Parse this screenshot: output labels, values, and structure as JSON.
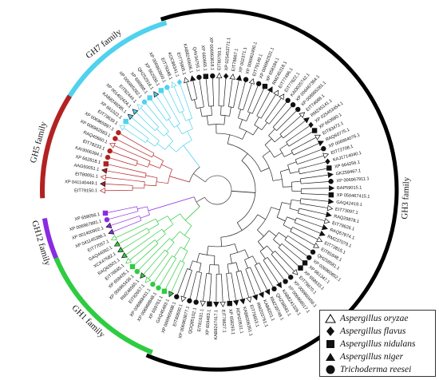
{
  "families": [
    {
      "name": "GH7 family",
      "color": "#4fd2ee",
      "start": 20,
      "end": 57
    },
    {
      "name": "GH5 family",
      "color": "#b22222",
      "start": 60,
      "end": 95
    },
    {
      "name": "GH12 family",
      "color": "#8a2be2",
      "start": 98,
      "end": 112
    },
    {
      "name": "GH1 family",
      "color": "#2ecc40",
      "start": 117,
      "end": 162
    },
    {
      "name": "GH3 family",
      "color": "#000000",
      "start": 167,
      "end": 356
    }
  ],
  "leaves": [
    {
      "label": "EIT79150.1",
      "symbol": "triangle",
      "group": "GH5"
    },
    {
      "label": "XP 041140449.1",
      "symbol": "filled-triangle",
      "group": "GH5"
    },
    {
      "label": "EIT80051.1",
      "symbol": "triangle",
      "group": "GH5"
    },
    {
      "label": "AAG50051.1",
      "symbol": "filled-triangle",
      "group": "GH5"
    },
    {
      "label": "XP 662818.1",
      "symbol": "square",
      "group": "GH5"
    },
    {
      "label": "KAI3006394.1",
      "symbol": "circle",
      "group": "GH5"
    },
    {
      "label": "EIT78233.1",
      "symbol": "circle",
      "group": "GH5"
    },
    {
      "label": "RAQ40660.1",
      "symbol": "triangle",
      "group": "GH5"
    },
    {
      "label": "XP 006962583.1",
      "symbol": "circle",
      "group": "GH5"
    },
    {
      "label": "XP 006965897.1",
      "symbol": "circle",
      "group": "GH5"
    },
    {
      "label": "EIT79639.1",
      "symbol": "triangle",
      "group": "GH7"
    },
    {
      "label": "XP 661022.1",
      "symbol": "square",
      "group": "GH7"
    },
    {
      "label": "KAB8249285.1",
      "symbol": "filled-triangle",
      "group": "GH7"
    },
    {
      "label": "XP 001402424.1",
      "symbol": "filled-triangle",
      "group": "GH7"
    },
    {
      "label": "EIT82444.1",
      "symbol": "triangle",
      "group": "GH7"
    },
    {
      "label": "XP 006965282.1",
      "symbol": "circle",
      "group": "GH7"
    },
    {
      "label": "XP 658998.1",
      "symbol": "square",
      "group": "GH7"
    },
    {
      "label": "QHZ52916.1",
      "symbol": "filled-triangle",
      "group": "GH7"
    },
    {
      "label": "XP 662030.1",
      "symbol": "square",
      "group": "GH7"
    },
    {
      "label": "XP 006963900.1",
      "symbol": "circle",
      "group": "GH7"
    },
    {
      "label": "EIT79348.1",
      "symbol": "triangle",
      "group": "GH7"
    },
    {
      "label": "KOC86341.1",
      "symbol": "diamond",
      "group": "GH7"
    },
    {
      "label": "EIT75905.1",
      "symbol": "triangle",
      "group": "GH3"
    },
    {
      "label": "KAB8245606.1",
      "symbol": "filled-triangle",
      "group": "GH3"
    },
    {
      "label": "QAV34755.1",
      "symbol": "circle",
      "group": "GH3"
    },
    {
      "label": "XP 660665.1",
      "symbol": "square",
      "group": "GH3"
    },
    {
      "label": "XP 006963618.1",
      "symbol": "circle",
      "group": "GH3"
    },
    {
      "label": "EIT80793.1",
      "symbol": "triangle",
      "group": "GH3"
    },
    {
      "label": "XP 025453771.1",
      "symbol": "diamond",
      "group": "GH3"
    },
    {
      "label": "EIT78867.1",
      "symbol": "triangle",
      "group": "GH3"
    },
    {
      "label": "XP 002371.1",
      "symbol": "filled-triangle",
      "group": "GH3"
    },
    {
      "label": "XP 006962490.1",
      "symbol": "circle",
      "group": "GH3"
    },
    {
      "label": "EIT79149.1",
      "symbol": "triangle",
      "group": "GH3"
    },
    {
      "label": "XP 006962531.1",
      "symbol": "circle",
      "group": "GH3"
    },
    {
      "label": "XP 658184.1",
      "symbol": "square",
      "group": "GH3"
    },
    {
      "label": "RMZ45318.1",
      "symbol": "filled-triangle",
      "group": "GH3"
    },
    {
      "label": "EIT77496.1",
      "symbol": "triangle",
      "group": "GH3"
    },
    {
      "label": "EIT77622.1",
      "symbol": "triangle",
      "group": "GH3"
    },
    {
      "label": "KAI3025742.1",
      "symbol": "circle",
      "group": "GH3"
    },
    {
      "label": "XP 006467364.1",
      "symbol": "circle",
      "group": "GH3"
    },
    {
      "label": "XP 006965281.1",
      "symbol": "circle",
      "group": "GH3"
    },
    {
      "label": "EIT74688.1",
      "symbol": "triangle",
      "group": "GH3"
    },
    {
      "label": "RMZ45141.1",
      "symbol": "filled-triangle",
      "group": "GH3"
    },
    {
      "label": "XP 025453454.1",
      "symbol": "diamond",
      "group": "GH3"
    },
    {
      "label": "XP 663580.1",
      "symbol": "square",
      "group": "GH3"
    },
    {
      "label": "EIT83472.1",
      "symbol": "triangle",
      "group": "GH3"
    },
    {
      "label": "RAQ60775.1",
      "symbol": "filled-triangle",
      "group": "GH3"
    },
    {
      "label": "XP 006964076.1",
      "symbol": "circle",
      "group": "GH3"
    },
    {
      "label": "EIT72708.1",
      "symbol": "triangle",
      "group": "GH3"
    },
    {
      "label": "KAJ1714040.1",
      "symbol": "diamond",
      "group": "GH3"
    },
    {
      "label": "XP 664256.1",
      "symbol": "square",
      "group": "GH3"
    },
    {
      "label": "GKZ58467.1",
      "symbol": "filled-triangle",
      "group": "GH3"
    },
    {
      "label": "XP 006967911.1",
      "symbol": "circle",
      "group": "GH3"
    },
    {
      "label": "BAP59015.1",
      "symbol": "filled-triangle",
      "group": "GH3"
    },
    {
      "label": "XP 050467415.1",
      "symbol": "square",
      "group": "GH3"
    },
    {
      "label": "GAQ42419.1",
      "symbol": "filled-triangle",
      "group": "GH3"
    },
    {
      "label": "EIT73097.1",
      "symbol": "triangle",
      "group": "GH3"
    },
    {
      "label": "RAQ29878.1",
      "symbol": "filled-triangle",
      "group": "GH3"
    },
    {
      "label": "EIT79626.1",
      "symbol": "triangle",
      "group": "GH3"
    },
    {
      "label": "RAQ57874.1",
      "symbol": "filled-triangle",
      "group": "GH3"
    },
    {
      "label": "RMZ37079.1",
      "symbol": "filled-triangle",
      "group": "GH3"
    },
    {
      "label": "EIT73815.1",
      "symbol": "triangle",
      "group": "GH3"
    },
    {
      "label": "EIT81848.1",
      "symbol": "triangle",
      "group": "GH3"
    },
    {
      "label": "QHZ58581.1",
      "symbol": "circle",
      "group": "GH3"
    },
    {
      "label": "XP 006960852.1",
      "symbol": "circle",
      "group": "GH3"
    },
    {
      "label": "XP 661347.1",
      "symbol": "square",
      "group": "GH3"
    },
    {
      "label": "XP 658633.1",
      "symbol": "square",
      "group": "GH3"
    },
    {
      "label": "EIT79670.1",
      "symbol": "triangle",
      "group": "GH3"
    },
    {
      "label": "XP 006960456.1",
      "symbol": "circle",
      "group": "GH3"
    },
    {
      "label": "XP 006968017.1",
      "symbol": "circle",
      "group": "GH3"
    },
    {
      "label": "KAB8241326.1",
      "symbol": "filled-triangle",
      "group": "GH3"
    },
    {
      "label": "QHZ58581.1",
      "symbol": "circle",
      "group": "GH3"
    },
    {
      "label": "RMZ39748.1",
      "symbol": "filled-triangle",
      "group": "GH3"
    },
    {
      "label": "KAB8201.1",
      "symbol": "filled-triangle",
      "group": "GH3"
    },
    {
      "label": "RMZ03761.1",
      "symbol": "filled-triangle",
      "group": "GH3"
    },
    {
      "label": "EIT76653.1",
      "symbol": "triangle",
      "group": "GH3"
    },
    {
      "label": "KAB8206351.1",
      "symbol": "filled-triangle",
      "group": "GH3"
    },
    {
      "label": "RDH20531.1",
      "symbol": "filled-triangle",
      "group": "GH3"
    },
    {
      "label": "XP 658293.1",
      "symbol": "square",
      "group": "GH3"
    },
    {
      "label": "EIT78627.1",
      "symbol": "triangle",
      "group": "GH3"
    },
    {
      "label": "KAB8247417.1",
      "symbol": "filled-triangle",
      "group": "GH3"
    },
    {
      "label": "XP 659483.1",
      "symbol": "square",
      "group": "GH3"
    },
    {
      "label": "EIT81631.1",
      "symbol": "triangle",
      "group": "GH3"
    },
    {
      "label": "QOQ85102.1",
      "symbol": "circle",
      "group": "GH3"
    },
    {
      "label": "XP 006963877.1",
      "symbol": "circle",
      "group": "GH3"
    },
    {
      "label": "EIT80600.1",
      "symbol": "triangle",
      "group": "GH3"
    },
    {
      "label": "XP 006965698.1",
      "symbol": "circle",
      "group": "GH3"
    },
    {
      "label": "GAQ45483.1",
      "symbol": "filled-triangle",
      "group": "GH1"
    },
    {
      "label": "XP 659761.1",
      "symbol": "square",
      "group": "GH1"
    },
    {
      "label": "XP 006968848.1",
      "symbol": "circle",
      "group": "GH1"
    },
    {
      "label": "XP 006968431.1",
      "symbol": "circle",
      "group": "GH1"
    },
    {
      "label": "EIT82657.1",
      "symbol": "triangle",
      "group": "GH1"
    },
    {
      "label": "RMZ46565.1",
      "symbol": "filled-triangle",
      "group": "GH1"
    },
    {
      "label": "XP 006963436.1",
      "symbol": "circle",
      "group": "GH1"
    },
    {
      "label": "XP 658426.1",
      "symbol": "square",
      "group": "GH1"
    },
    {
      "label": "EIT76665.1",
      "symbol": "triangle",
      "group": "GH1"
    },
    {
      "label": "RAQ63501.1",
      "symbol": "filled-triangle",
      "group": "GH1"
    },
    {
      "label": "XCX47682.1",
      "symbol": "filled-triangle",
      "group": "GH1"
    },
    {
      "label": "GAQ44092.1",
      "symbol": "filled-triangle",
      "group": "GH1"
    },
    {
      "label": "EIT77057.1",
      "symbol": "triangle",
      "group": "GH1"
    },
    {
      "label": "XP 041145386.1",
      "symbol": "filled-triangle",
      "group": "GH12"
    },
    {
      "label": "XP 001400902.1",
      "symbol": "filled-triangle",
      "group": "GH12"
    },
    {
      "label": "XP 006967891.1",
      "symbol": "circle",
      "group": "GH12"
    },
    {
      "label": "XP 658056.1",
      "symbol": "square",
      "group": "GH12"
    }
  ],
  "legend": [
    {
      "symbol": "triangle",
      "label": "Aspergillus oryzae"
    },
    {
      "symbol": "diamond",
      "label": "Aspergillus flavus"
    },
    {
      "symbol": "square",
      "label": "Aspergillus nidulans"
    },
    {
      "symbol": "filled-triangle",
      "label": "Aspergillus niger"
    },
    {
      "symbol": "circle",
      "label": "Trichoderma reesei"
    }
  ]
}
